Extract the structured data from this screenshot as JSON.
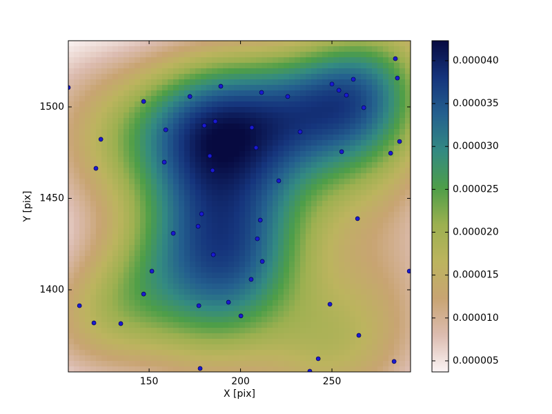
{
  "chart_data": {
    "type": "scatter",
    "xlabel": "X [pix]",
    "ylabel": "Y [pix]",
    "xlim": [
      105.8,
      293
    ],
    "ylim": [
      1355.1,
      1536.2
    ],
    "xticks": [
      150,
      200,
      250
    ],
    "yticks": [
      1400,
      1450,
      1500
    ],
    "color": "#1a1ad0",
    "x": [
      105.8,
      147.0,
      172.3,
      189.2,
      211.5,
      225.8,
      250.0,
      253.8,
      257.9,
      261.7,
      267.4,
      284.7,
      285.8,
      287.0,
      282.1,
      255.3,
      232.6,
      206.2,
      208.5,
      186.2,
      180.2,
      183.2,
      184.7,
      159.1,
      158.3,
      123.6,
      120.9,
      220.9,
      264.0,
      210.8,
      178.7,
      176.8,
      163.2,
      209.2,
      185.1,
      211.9,
      205.8,
      151.5,
      147.0,
      177.2,
      193.4,
      200.2,
      248.9,
      111.9,
      119.8,
      134.5,
      264.7,
      242.5,
      237.9,
      284.0,
      177.9,
      292.3
    ],
    "y": [
      1510.6,
      1503.0,
      1505.7,
      1511.3,
      1507.9,
      1505.7,
      1512.5,
      1509.1,
      1506.4,
      1515.1,
      1499.6,
      1526.4,
      1515.8,
      1481.1,
      1474.7,
      1475.5,
      1486.4,
      1488.7,
      1477.7,
      1492.1,
      1489.8,
      1473.2,
      1465.3,
      1487.5,
      1469.8,
      1482.3,
      1466.4,
      1459.6,
      1438.9,
      1438.1,
      1441.5,
      1434.7,
      1430.9,
      1427.9,
      1419.2,
      1415.5,
      1405.7,
      1410.2,
      1397.7,
      1391.3,
      1393.2,
      1385.7,
      1392.1,
      1391.3,
      1381.9,
      1381.5,
      1375.1,
      1362.3,
      1355.5,
      1360.8,
      1357.0,
      1410.2
    ],
    "density": {
      "clim": [
        3.71e-06,
        4.233e-05
      ],
      "colormap": [
        "#fbf4f4",
        "#dcbcb0",
        "#c8a472",
        "#bcb45e",
        "#9cb050",
        "#4e9e48",
        "#338a82",
        "#24608e",
        "#15347c",
        "#070a40"
      ],
      "ticks": [
        5e-06,
        {
          "value": 1e-05,
          "label": "0.000010"
        },
        1.5e-05,
        {
          "value": 2e-05,
          "label": "0.000020"
        },
        2.5e-05,
        {
          "value": 3e-05,
          "label": "0.000030"
        },
        3.5e-05,
        {
          "value": 4e-05,
          "label": "0.000040"
        }
      ]
    }
  }
}
